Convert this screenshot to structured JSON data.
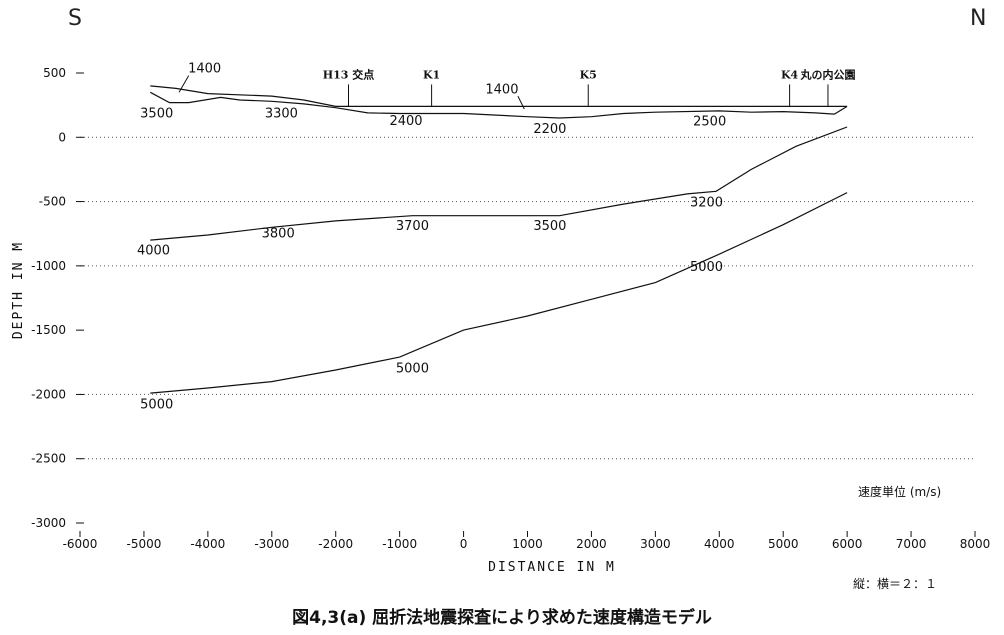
{
  "direction_left": "S",
  "direction_right": "N",
  "caption": "図4,3(a)  屈折法地震探査により求めた速度構造モデル",
  "velocity_unit_note": "速度単位 (m/s)",
  "scale_note": "縦：横＝２：１",
  "chart_data": {
    "type": "line",
    "xlabel": "DISTANCE IN M",
    "ylabel": "DEPTH IN M",
    "xlim": [
      -6000,
      8000
    ],
    "ylim": [
      -3000,
      500
    ],
    "xticks": [
      -6000,
      -5000,
      -4000,
      -3000,
      -2000,
      -1000,
      0,
      1000,
      2000,
      3000,
      4000,
      5000,
      6000,
      7000,
      8000
    ],
    "yticks": [
      500,
      0,
      -500,
      -1000,
      -1500,
      -2000,
      -2500,
      -3000
    ],
    "grid": "dotted horizontal at 0, -500, -1000, -2000, -2500",
    "series": [
      {
        "points": [
          [
            -4900,
            400
          ],
          [
            -4500,
            380
          ],
          [
            -4000,
            340
          ],
          [
            -3000,
            320
          ],
          [
            -2500,
            290
          ],
          [
            -2000,
            240
          ],
          [
            -1500,
            240
          ],
          [
            0,
            240
          ],
          [
            2000,
            240
          ],
          [
            4000,
            240
          ],
          [
            6000,
            240
          ]
        ]
      },
      {
        "points": [
          [
            -4900,
            350
          ],
          [
            -4600,
            270
          ],
          [
            -4300,
            270
          ],
          [
            -3800,
            310
          ],
          [
            -3500,
            290
          ],
          [
            -3000,
            280
          ],
          [
            -2500,
            260
          ],
          [
            -2000,
            230
          ],
          [
            -1500,
            190
          ],
          [
            -1000,
            185
          ],
          [
            0,
            185
          ],
          [
            1000,
            160
          ],
          [
            1500,
            150
          ],
          [
            2000,
            160
          ],
          [
            2500,
            185
          ],
          [
            3000,
            195
          ],
          [
            4000,
            205
          ],
          [
            4500,
            195
          ],
          [
            5000,
            200
          ],
          [
            5500,
            190
          ],
          [
            5800,
            180
          ],
          [
            6000,
            240
          ]
        ]
      },
      {
        "points": [
          [
            -4900,
            -800
          ],
          [
            -4000,
            -760
          ],
          [
            -3000,
            -700
          ],
          [
            -2000,
            -650
          ],
          [
            -800,
            -610
          ],
          [
            0,
            -610
          ],
          [
            1000,
            -610
          ],
          [
            1500,
            -610
          ],
          [
            2500,
            -520
          ],
          [
            3500,
            -440
          ],
          [
            3950,
            -420
          ],
          [
            4500,
            -250
          ],
          [
            5200,
            -70
          ],
          [
            6000,
            80
          ]
        ]
      },
      {
        "points": [
          [
            -4900,
            -1990
          ],
          [
            -4000,
            -1950
          ],
          [
            -3000,
            -1900
          ],
          [
            -2000,
            -1810
          ],
          [
            -1000,
            -1710
          ],
          [
            0,
            -1500
          ],
          [
            1000,
            -1390
          ],
          [
            2000,
            -1260
          ],
          [
            3000,
            -1130
          ],
          [
            3950,
            -920
          ],
          [
            5000,
            -680
          ],
          [
            6000,
            -430
          ]
        ]
      }
    ],
    "surface_labels": [
      {
        "text": "H13 交点",
        "x": -1800
      },
      {
        "text": "K1",
        "x": -500
      },
      {
        "text": "K5",
        "x": 1950
      },
      {
        "text": "K4",
        "x": 5100
      },
      {
        "text": "丸の内公園",
        "x": 5700
      }
    ],
    "velocity_labels": [
      {
        "text": "1400",
        "x": -4050,
        "y": 505
      },
      {
        "text": "3500",
        "x": -4800,
        "y": 155
      },
      {
        "text": "3300",
        "x": -2850,
        "y": 155
      },
      {
        "text": "1400",
        "x": 600,
        "y": 340
      },
      {
        "text": "2400",
        "x": -900,
        "y": 95
      },
      {
        "text": "2200",
        "x": 1350,
        "y": 35
      },
      {
        "text": "2500",
        "x": 3850,
        "y": 90
      },
      {
        "text": "4000",
        "x": -4850,
        "y": -910
      },
      {
        "text": "3800",
        "x": -2900,
        "y": -780
      },
      {
        "text": "3700",
        "x": -800,
        "y": -720
      },
      {
        "text": "3500",
        "x": 1350,
        "y": -720
      },
      {
        "text": "3200",
        "x": 3800,
        "y": -540
      },
      {
        "text": "5000",
        "x": 3800,
        "y": -1040
      },
      {
        "text": "5000",
        "x": -800,
        "y": -1830
      },
      {
        "text": "5000",
        "x": -4800,
        "y": -2110
      }
    ]
  }
}
